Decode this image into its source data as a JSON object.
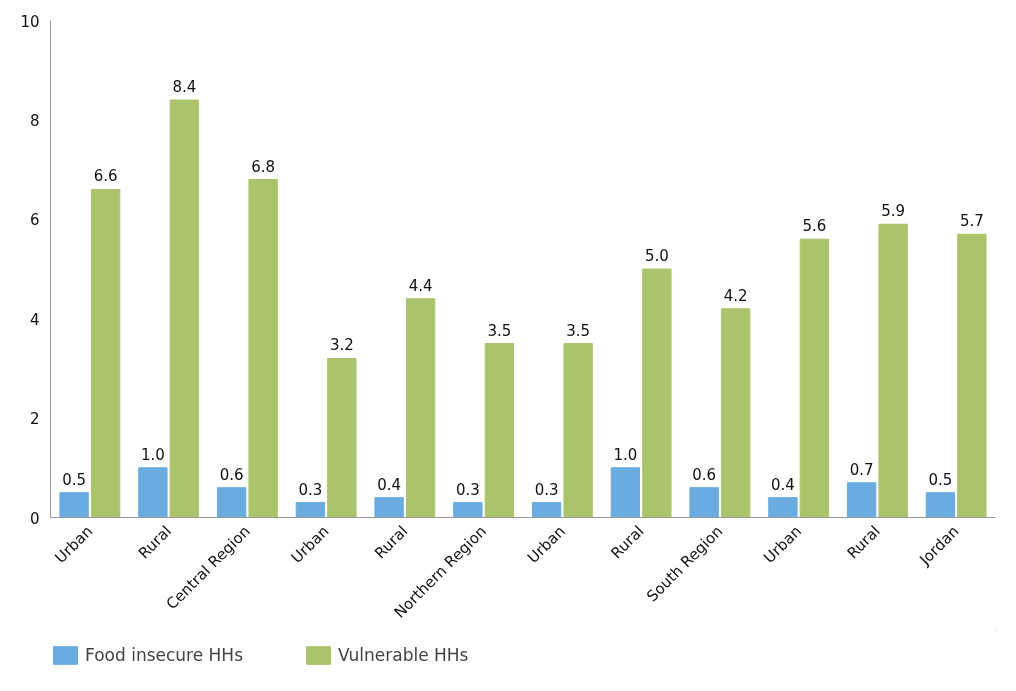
{
  "chart_data": {
    "type": "bar",
    "categories": [
      "Urban",
      "Rural",
      "Central Region",
      "Urban",
      "Rural",
      "Northern Region",
      "Urban",
      "Rural",
      "South Region",
      "Urban",
      "Rural",
      "Jordan"
    ],
    "series": [
      {
        "name": "Food insecure HHs",
        "color": "#6aace0",
        "values": [
          0.5,
          1.0,
          0.6,
          0.3,
          0.4,
          0.3,
          0.3,
          1.0,
          0.6,
          0.4,
          0.7,
          0.5
        ],
        "value_labels": [
          "0.5",
          "1.0",
          "0.6",
          "0.3",
          "0.4",
          "0.3",
          "0.3",
          "1.0",
          "0.6",
          "0.4",
          "0.7",
          "0.5"
        ]
      },
      {
        "name": "Vulnerable HHs",
        "color": "#a9c46b",
        "values": [
          6.6,
          8.4,
          6.8,
          3.2,
          4.4,
          3.5,
          3.5,
          5.0,
          4.2,
          5.6,
          5.9,
          5.7
        ],
        "value_labels": [
          "6.6",
          "8.4",
          "6.8",
          "3.2",
          "4.4",
          "3.5",
          "3.5",
          "5.0",
          "4.2",
          "5.6",
          "5.9",
          "5.7"
        ]
      }
    ],
    "ylim": [
      0,
      10
    ],
    "yticks": [
      0,
      2,
      4,
      6,
      8,
      10
    ],
    "grid": false,
    "legend": "bottom left"
  }
}
